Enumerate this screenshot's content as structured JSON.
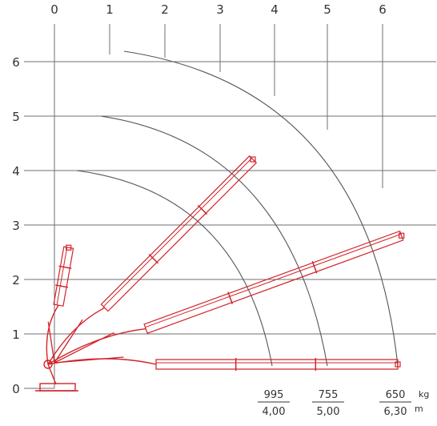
{
  "chart_data": {
    "type": "diagram",
    "x_ticks": [
      "0",
      "1",
      "2",
      "3",
      "4",
      "5",
      "6"
    ],
    "y_ticks": [
      "0",
      "1",
      "2",
      "3",
      "4",
      "5",
      "6"
    ],
    "grid": true,
    "arc_radii": [
      4.0,
      5.0,
      6.3
    ],
    "boom_angles_deg": [
      0,
      20,
      45,
      80
    ],
    "capacities": [
      {
        "load": "995",
        "reach": "4,00"
      },
      {
        "load": "755",
        "reach": "5,00"
      },
      {
        "load": "650",
        "reach": "6,30"
      }
    ],
    "units": {
      "load": "kg",
      "reach": "m"
    }
  },
  "colors": {
    "grid": "#6f6f6f",
    "arc": "#555555",
    "boom": "#d2232a",
    "text": "#333333"
  }
}
